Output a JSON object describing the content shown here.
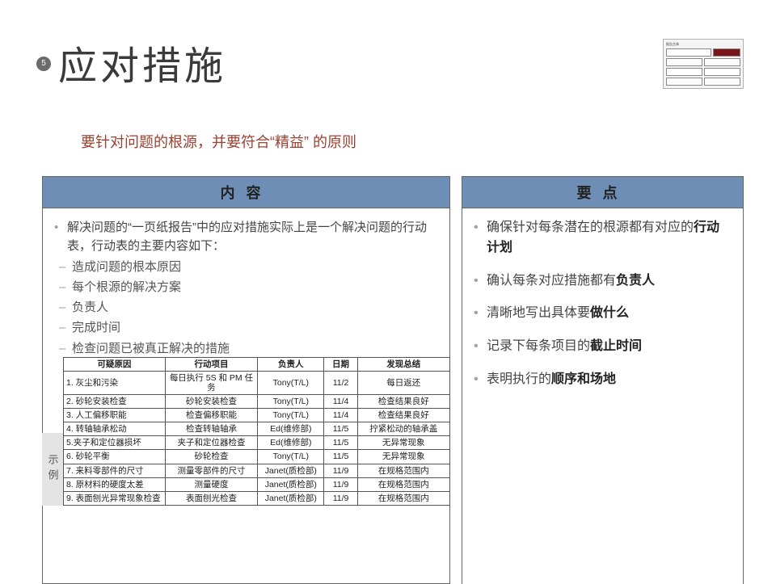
{
  "page_number": "5",
  "title": "应对措施",
  "subtitle": "要针对问题的根源，并要符合“精益” 的原则",
  "left_panel": {
    "header": "内容",
    "lead": "解决问题的“一页纸报告”中的应对措施实际上是一个解决问题的行动表，行动表的主要内容如下：",
    "dashes": [
      "造成问题的根本原因",
      "每个根源的解决方案",
      "负责人",
      "完成时间",
      "检查问题已被真正解决的措施"
    ]
  },
  "right_panel": {
    "header": "要点",
    "points": [
      {
        "pre": "确保针对每条潜在的根源都有对应的",
        "bold": "行动计划"
      },
      {
        "pre": "确认每条对应措施都有",
        "bold": "负责人"
      },
      {
        "pre": "清晰地写出具体要",
        "bold": "做什么"
      },
      {
        "pre": "记录下每条项目的",
        "bold": "截止时间"
      },
      {
        "pre": "表明执行的",
        "bold": "顺序和场地"
      }
    ]
  },
  "example": {
    "tab": "示例",
    "columns": [
      "可疑原因",
      "行动项目",
      "负责人",
      "日期",
      "发现总结"
    ],
    "rows": [
      [
        "1. 灰尘和污染",
        "每日执行 5S 和 PM 任务",
        "Tony(T/L)",
        "11/2",
        "每日返还"
      ],
      [
        "2. 砂轮安装检查",
        "砂轮安装检查",
        "Tony(T/L)",
        "11/4",
        "检查结果良好"
      ],
      [
        "3. 人工偏移职能",
        "检查偏移职能",
        "Tony(T/L)",
        "11/4",
        "检查结果良好"
      ],
      [
        "4. 转轴轴承松动",
        "检查转轴轴承",
        "Ed(维修部)",
        "11/5",
        "拧紧松动的轴承盖"
      ],
      [
        "5.夹子和定位器损坏",
        "夹子和定位器检查",
        "Ed(维修部)",
        "11/5",
        "无异常现象"
      ],
      [
        "6. 砂轮平衡",
        "砂轮检查",
        "Tony(T/L)",
        "11/5",
        "无异常现象"
      ],
      [
        "7. 来料零部件的尺寸",
        "测量零部件的尺寸",
        "Janet(质检部)",
        "11/9",
        "在规格范围内"
      ],
      [
        "8. 原材料的硬度太差",
        "测量硬度",
        "Janet(质检部)",
        "11/9",
        "在规格范围内"
      ],
      [
        "9. 表面刨光异常现象检查",
        "表面刨光检查",
        "Janet(质检部)",
        "11/9",
        "在规格范围内"
      ]
    ]
  },
  "colors": {
    "panel_header_bg": "#6f8eb6",
    "subtitle_color": "#9c4030",
    "border": "#666666"
  }
}
